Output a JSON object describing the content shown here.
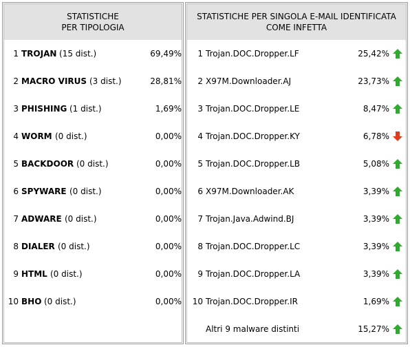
{
  "left": {
    "header": [
      "STATISTICHE",
      "PER TIPOLOGIA"
    ],
    "rows": [
      {
        "rank": 1,
        "name": "TROJAN",
        "detail": "(15 dist.)",
        "percent": "69,49%"
      },
      {
        "rank": 2,
        "name": "MACRO VIRUS",
        "detail": "(3 dist.)",
        "percent": "28,81%"
      },
      {
        "rank": 3,
        "name": "PHISHING",
        "detail": "(1 dist.)",
        "percent": "1,69%"
      },
      {
        "rank": 4,
        "name": "WORM",
        "detail": "(0 dist.)",
        "percent": "0,00%"
      },
      {
        "rank": 5,
        "name": "BACKDOOR",
        "detail": "(0 dist.)",
        "percent": "0,00%"
      },
      {
        "rank": 6,
        "name": "SPYWARE",
        "detail": "(0 dist.)",
        "percent": "0,00%"
      },
      {
        "rank": 7,
        "name": "ADWARE",
        "detail": "(0 dist.)",
        "percent": "0,00%"
      },
      {
        "rank": 8,
        "name": "DIALER",
        "detail": "(0 dist.)",
        "percent": "0,00%"
      },
      {
        "rank": 9,
        "name": "HTML",
        "detail": "(0 dist.)",
        "percent": "0,00%"
      },
      {
        "rank": 10,
        "name": "BHO",
        "detail": "(0 dist.)",
        "percent": "0,00%"
      }
    ]
  },
  "right": {
    "header": [
      "STATISTICHE PER SINGOLA E-MAIL IDENTIFICATA",
      "COME INFETTA"
    ],
    "rows": [
      {
        "rank": 1,
        "name": "Trojan.DOC.Dropper.LF",
        "percent": "25,42%",
        "trend": "up"
      },
      {
        "rank": 2,
        "name": "X97M.Downloader.AJ",
        "percent": "23,73%",
        "trend": "up"
      },
      {
        "rank": 3,
        "name": "Trojan.DOC.Dropper.LE",
        "percent": "8,47%",
        "trend": "up"
      },
      {
        "rank": 4,
        "name": "Trojan.DOC.Dropper.KY",
        "percent": "6,78%",
        "trend": "down"
      },
      {
        "rank": 5,
        "name": "Trojan.DOC.Dropper.LB",
        "percent": "5,08%",
        "trend": "up"
      },
      {
        "rank": 6,
        "name": "X97M.Downloader.AK",
        "percent": "3,39%",
        "trend": "up"
      },
      {
        "rank": 7,
        "name": "Trojan.Java.Adwind.BJ",
        "percent": "3,39%",
        "trend": "up"
      },
      {
        "rank": 8,
        "name": "Trojan.DOC.Dropper.LC",
        "percent": "3,39%",
        "trend": "up"
      },
      {
        "rank": 9,
        "name": "Trojan.DOC.Dropper.LA",
        "percent": "3,39%",
        "trend": "up"
      },
      {
        "rank": 10,
        "name": "Trojan.DOC.Dropper.IR",
        "percent": "1,69%",
        "trend": "up"
      },
      {
        "name": "Altri 9 malware distinti",
        "percent": "15,27%",
        "trend": "up"
      }
    ]
  }
}
